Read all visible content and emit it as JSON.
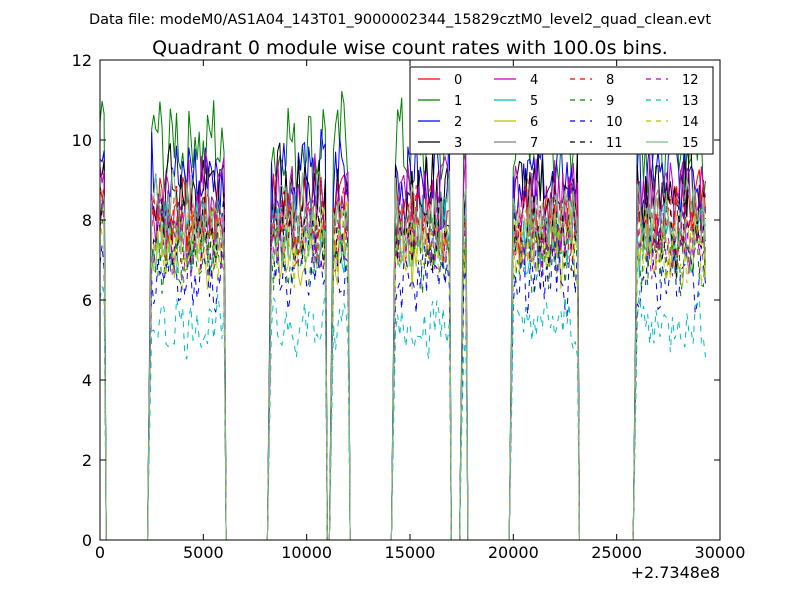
{
  "header": {
    "data_file_label": "Data file: modeM0/AS1A04_143T01_9000002344_15829cztM0_level2_quad_clean.evt"
  },
  "chart_data": {
    "type": "line",
    "title": "Quadrant 0 module wise count rates with 100.0s bins.",
    "xlabel": "",
    "ylabel": "",
    "x_offset_label": "+2.7348e8",
    "xlim": [
      0,
      30000
    ],
    "ylim": [
      0,
      12
    ],
    "xticks": [
      0,
      5000,
      10000,
      15000,
      20000,
      25000,
      30000
    ],
    "xtick_labels": [
      "0",
      "5000",
      "10000",
      "15000",
      "20000",
      "25000",
      "30000"
    ],
    "yticks": [
      0,
      2,
      4,
      6,
      8,
      10,
      12
    ],
    "ytick_labels": [
      "0",
      "2",
      "4",
      "6",
      "8",
      "10",
      "12"
    ],
    "bin_size_s": 100,
    "x_range": [
      0,
      29300
    ],
    "grid": false,
    "legend": {
      "placement": "top-right",
      "columns": 4
    },
    "segments": [
      [
        0,
        200
      ],
      [
        2400,
        6000
      ],
      [
        8200,
        10900
      ],
      [
        11200,
        12000
      ],
      [
        14200,
        16900
      ],
      [
        17500,
        17700
      ],
      [
        19900,
        23100
      ],
      [
        25900,
        29300
      ]
    ],
    "series": [
      {
        "name": "0",
        "color": "#ff0000",
        "dash": "solid",
        "level": 8.2
      },
      {
        "name": "1",
        "color": "#008000",
        "dash": "solid",
        "level": 9.9
      },
      {
        "name": "2",
        "color": "#0000ff",
        "dash": "solid",
        "level": 9.1
      },
      {
        "name": "3",
        "color": "#000000",
        "dash": "solid",
        "level": 8.7
      },
      {
        "name": "4",
        "color": "#bf00bf",
        "dash": "solid",
        "level": 8.5
      },
      {
        "name": "5",
        "color": "#00bfbf",
        "dash": "solid",
        "level": 7.6
      },
      {
        "name": "6",
        "color": "#bfbf00",
        "dash": "solid",
        "level": 7.4
      },
      {
        "name": "7",
        "color": "#808080",
        "dash": "solid",
        "level": 7.8
      },
      {
        "name": "8",
        "color": "#ff0000",
        "dash": "dashed",
        "level": 7.9
      },
      {
        "name": "9",
        "color": "#008000",
        "dash": "dashed",
        "level": 7.2
      },
      {
        "name": "10",
        "color": "#0000ff",
        "dash": "dashed",
        "level": 6.6
      },
      {
        "name": "11",
        "color": "#000000",
        "dash": "dashed",
        "level": 7.7
      },
      {
        "name": "12",
        "color": "#bf00bf",
        "dash": "dashed",
        "level": 7.5
      },
      {
        "name": "13",
        "color": "#00bfbf",
        "dash": "dashed",
        "level": 5.4
      },
      {
        "name": "14",
        "color": "#bfbf00",
        "dash": "dashed",
        "level": 7.3
      },
      {
        "name": "15",
        "color": "#7fbf7f",
        "dash": "solid",
        "level": 8.1
      }
    ]
  }
}
